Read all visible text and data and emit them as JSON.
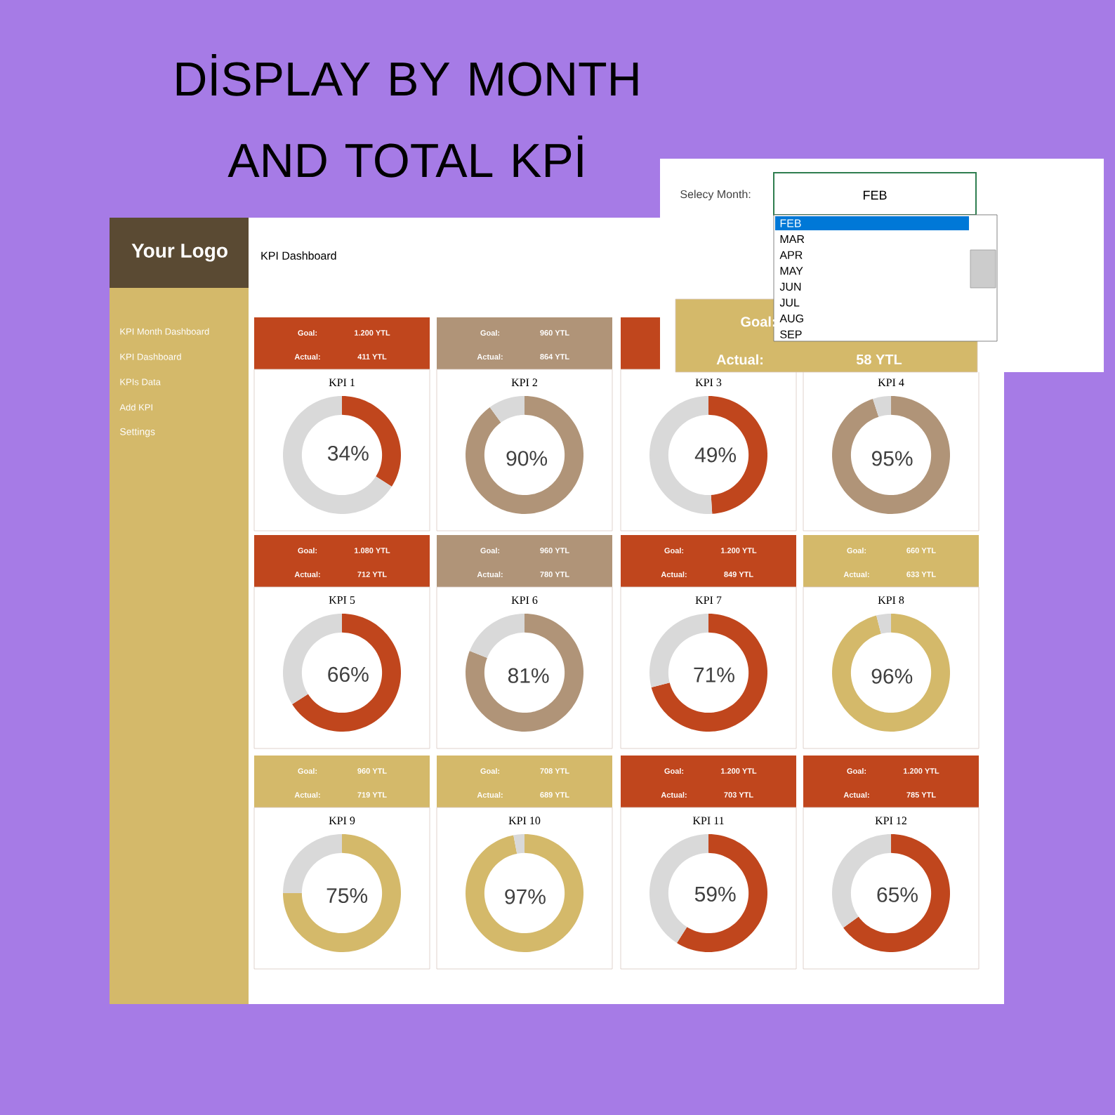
{
  "chart_data": [
    {
      "type": "other",
      "title": "DİSPLAY BY MONTH AND TOTAL KPİ",
      "subtitle": "KPI Dashboard",
      "annotations": [
        "Your Logo",
        "KPI Month Dashboard",
        "KPI Dashboard",
        "KPIs Data",
        "Add KPI",
        "Settings",
        "Selecy Month:",
        "FEB",
        "FEB",
        "MAR",
        "APR",
        "MAY",
        "JUN",
        "JUL",
        "AUG",
        "SEP",
        "Goal:",
        "Actual:",
        "58 YTL"
      ]
    },
    {
      "type": "donut",
      "title": "KPI 1",
      "categories": [
        null,
        null
      ],
      "values": [
        34,
        66
      ],
      "colors": [
        "#c0461d",
        "#d9d9d9"
      ],
      "value_labels": [
        "34%",
        null
      ],
      "annotations": [
        "Goal:",
        "1.200 YTL",
        "Actual:",
        "411 YTL"
      ]
    },
    {
      "type": "donut",
      "title": "KPI 2",
      "categories": [
        null,
        null
      ],
      "values": [
        90,
        10
      ],
      "colors": [
        "#b09478",
        "#d9d9d9"
      ],
      "value_labels": [
        "90%",
        null
      ],
      "annotations": [
        "Goal:",
        "960 YTL",
        "Actual:",
        "864 YTL"
      ]
    },
    {
      "type": "donut",
      "title": "KPI 3",
      "categories": [
        null,
        null
      ],
      "values": [
        49,
        51
      ],
      "colors": [
        "#c0461d",
        "#d9d9d9"
      ],
      "value_labels": [
        "49%",
        null
      ]
    },
    {
      "type": "donut",
      "title": "KPI 4",
      "categories": [
        null,
        null
      ],
      "values": [
        95,
        5
      ],
      "colors": [
        "#b09478",
        "#d9d9d9"
      ],
      "value_labels": [
        "95%",
        null
      ]
    },
    {
      "type": "donut",
      "title": "KPI 5",
      "categories": [
        null,
        null
      ],
      "values": [
        66,
        34
      ],
      "colors": [
        "#c0461d",
        "#d9d9d9"
      ],
      "value_labels": [
        "66%",
        null
      ],
      "annotations": [
        "Goal:",
        "1.080 YTL",
        "Actual:",
        "712 YTL"
      ]
    },
    {
      "type": "donut",
      "title": "KPI 6",
      "categories": [
        null,
        null
      ],
      "values": [
        81,
        19
      ],
      "colors": [
        "#b09478",
        "#d9d9d9"
      ],
      "value_labels": [
        "81%",
        null
      ],
      "annotations": [
        "Goal:",
        "960 YTL",
        "Actual:",
        "780 YTL"
      ]
    },
    {
      "type": "donut",
      "title": "KPI 7",
      "categories": [
        null,
        null
      ],
      "values": [
        71,
        29
      ],
      "colors": [
        "#c0461d",
        "#d9d9d9"
      ],
      "value_labels": [
        "71%",
        null
      ],
      "annotations": [
        "Goal:",
        "1.200 YTL",
        "Actual:",
        "849 YTL"
      ]
    },
    {
      "type": "donut",
      "title": "KPI 8",
      "categories": [
        null,
        null
      ],
      "values": [
        96,
        4
      ],
      "colors": [
        "#d4b96a",
        "#d9d9d9"
      ],
      "value_labels": [
        "96%",
        null
      ],
      "annotations": [
        "Goal:",
        "660 YTL",
        "Actual:",
        "633 YTL"
      ]
    },
    {
      "type": "donut",
      "title": "KPI 9",
      "categories": [
        null,
        null
      ],
      "values": [
        75,
        25
      ],
      "colors": [
        "#d4b96a",
        "#d9d9d9"
      ],
      "value_labels": [
        "75%",
        null
      ],
      "annotations": [
        "Goal:",
        "960 YTL",
        "Actual:",
        "719 YTL"
      ]
    },
    {
      "type": "donut",
      "title": "KPI 10",
      "categories": [
        null,
        null
      ],
      "values": [
        97,
        3
      ],
      "colors": [
        "#d4b96a",
        "#d9d9d9"
      ],
      "value_labels": [
        "97%",
        null
      ],
      "annotations": [
        "Goal:",
        "708 YTL",
        "Actual:",
        "689 YTL"
      ]
    },
    {
      "type": "donut",
      "title": "KPI 11",
      "categories": [
        null,
        null
      ],
      "values": [
        59,
        41
      ],
      "colors": [
        "#c0461d",
        "#d9d9d9"
      ],
      "value_labels": [
        "59%",
        null
      ],
      "annotations": [
        "Goal:",
        "1.200 YTL",
        "Actual:",
        "703 YTL"
      ]
    },
    {
      "type": "donut",
      "title": "KPI 12",
      "categories": [
        null,
        null
      ],
      "values": [
        65,
        35
      ],
      "colors": [
        "#c0461d",
        "#d9d9d9"
      ],
      "value_labels": [
        "65%",
        null
      ],
      "annotations": [
        "Goal:",
        "1.200 YTL",
        "Actual:",
        "785 YTL"
      ]
    }
  ]
}
